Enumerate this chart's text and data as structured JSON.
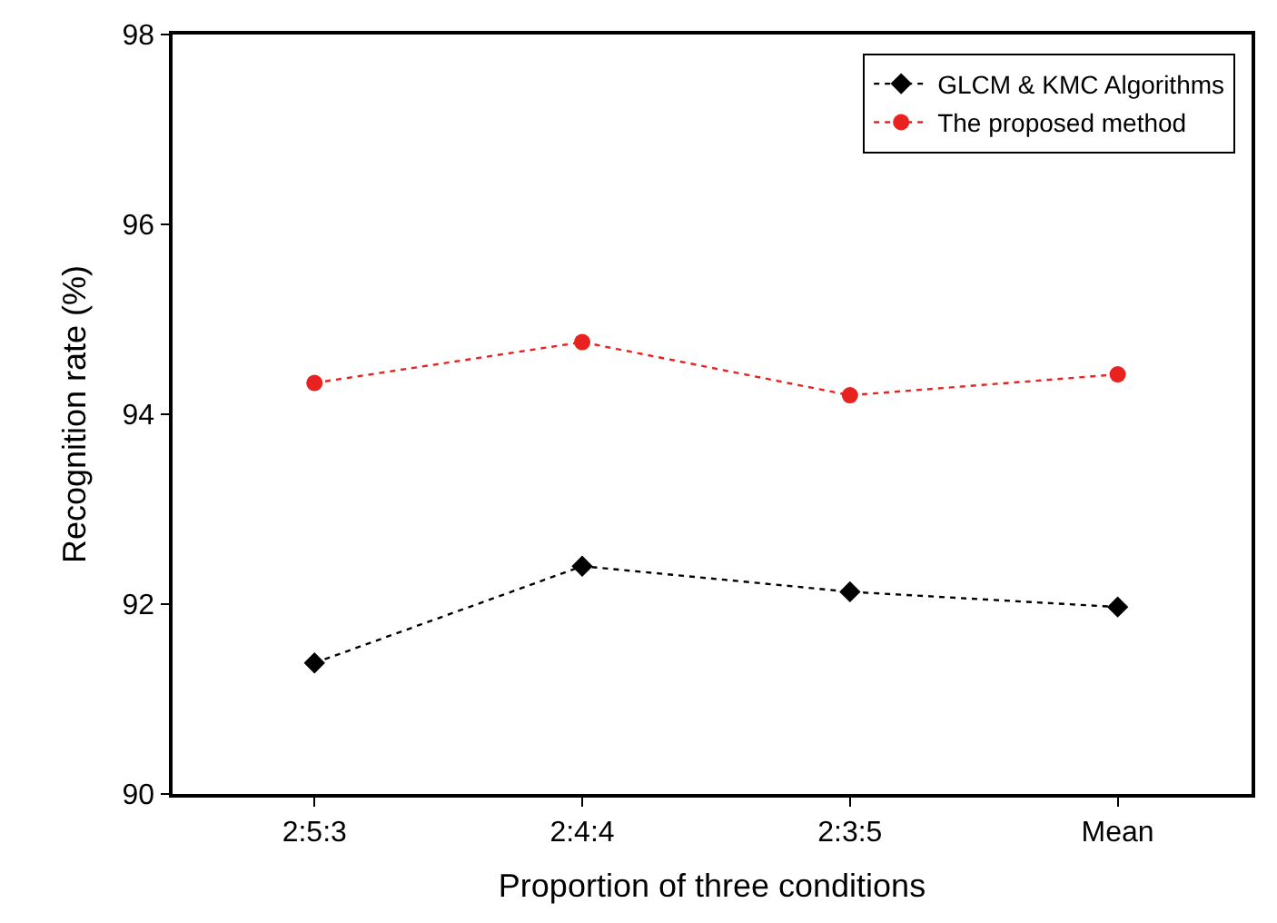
{
  "chart_data": {
    "type": "line",
    "xlabel": "Proportion of three conditions",
    "ylabel": "Recognition rate (%)",
    "categories": [
      "2:5:3",
      "2:4:4",
      "2:3:5",
      "Mean"
    ],
    "series": [
      {
        "name": "GLCM & KMC Algorithms",
        "color": "#000000",
        "values": [
          91.38,
          92.4,
          92.13,
          91.97
        ],
        "marker": "diamond"
      },
      {
        "name": "The proposed method",
        "color": "#e8221f",
        "values": [
          94.33,
          94.76,
          94.2,
          94.42
        ],
        "marker": "circle"
      }
    ],
    "ylim": [
      90,
      98
    ],
    "yticks": [
      90,
      92,
      94,
      96,
      98
    ],
    "legend": "top right",
    "line_style": "dotted"
  }
}
